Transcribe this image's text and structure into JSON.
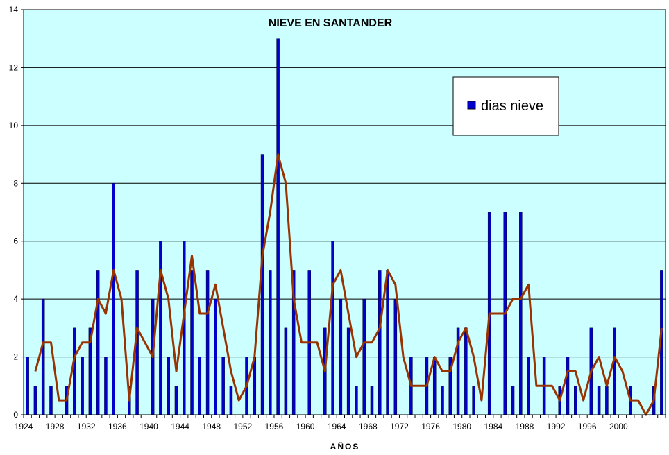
{
  "chart_data": {
    "type": "bar",
    "title": "NIEVE EN SANTANDER",
    "xlabel": "AÑOS",
    "ylabel": "",
    "ylim": [
      0,
      14
    ],
    "yticks": [
      0,
      2,
      4,
      6,
      8,
      10,
      12,
      14
    ],
    "xlim": [
      1924,
      2005
    ],
    "xtick_labels": [
      "1924",
      "1928",
      "1932",
      "1936",
      "1940",
      "1944",
      "1948",
      "1952",
      "1956",
      "1960",
      "1964",
      "1968",
      "1972",
      "1976",
      "1980",
      "1984",
      "1988",
      "1992",
      "1996",
      "2000"
    ],
    "grid": true,
    "legend_position": "upper-right",
    "colors": {
      "plot_background": "#ccffff",
      "bar": "#0000cc",
      "line": "#993300",
      "grid": "#000000"
    },
    "series": [
      {
        "name": "dias nieve",
        "kind": "bar",
        "x": [
          1924,
          1925,
          1926,
          1927,
          1928,
          1929,
          1930,
          1931,
          1932,
          1933,
          1934,
          1935,
          1936,
          1937,
          1938,
          1939,
          1940,
          1941,
          1942,
          1943,
          1944,
          1945,
          1946,
          1947,
          1948,
          1949,
          1950,
          1951,
          1952,
          1953,
          1954,
          1955,
          1956,
          1957,
          1958,
          1959,
          1960,
          1961,
          1962,
          1963,
          1964,
          1965,
          1966,
          1967,
          1968,
          1969,
          1970,
          1971,
          1972,
          1973,
          1974,
          1975,
          1976,
          1977,
          1978,
          1979,
          1980,
          1981,
          1982,
          1983,
          1984,
          1985,
          1986,
          1987,
          1988,
          1989,
          1990,
          1991,
          1992,
          1993,
          1994,
          1995,
          1996,
          1997,
          1998,
          1999,
          2000,
          2001,
          2002,
          2003,
          2004,
          2005
        ],
        "values": [
          2,
          1,
          4,
          1,
          0,
          1,
          3,
          2,
          3,
          5,
          2,
          8,
          0,
          1,
          5,
          0,
          4,
          6,
          2,
          1,
          6,
          5,
          2,
          5,
          4,
          2,
          1,
          0,
          2,
          2,
          9,
          5,
          13,
          3,
          5,
          0,
          5,
          0,
          3,
          6,
          4,
          3,
          1,
          4,
          1,
          5,
          5,
          4,
          0,
          2,
          0,
          2,
          2,
          1,
          2,
          3,
          3,
          1,
          0,
          7,
          0,
          7,
          1,
          7,
          2,
          0,
          2,
          0,
          1,
          2,
          1,
          0,
          3,
          1,
          1,
          3,
          0,
          1,
          0,
          0,
          1,
          5
        ]
      },
      {
        "name": "",
        "kind": "line",
        "x": [
          1925,
          1926,
          1927,
          1928,
          1929,
          1930,
          1931,
          1932,
          1933,
          1934,
          1935,
          1936,
          1937,
          1938,
          1939,
          1940,
          1941,
          1942,
          1943,
          1944,
          1945,
          1946,
          1947,
          1948,
          1949,
          1950,
          1951,
          1952,
          1953,
          1954,
          1955,
          1956,
          1957,
          1958,
          1959,
          1960,
          1961,
          1962,
          1963,
          1964,
          1965,
          1966,
          1967,
          1968,
          1969,
          1970,
          1971,
          1972,
          1973,
          1974,
          1975,
          1976,
          1977,
          1978,
          1979,
          1980,
          1981,
          1982,
          1983,
          1984,
          1985,
          1986,
          1987,
          1988,
          1989,
          1990,
          1991,
          1992,
          1993,
          1994,
          1995,
          1996,
          1997,
          1998,
          1999,
          2000,
          2001,
          2002,
          2003,
          2004,
          2005
        ],
        "values": [
          1.5,
          2.5,
          2.5,
          0.5,
          0.5,
          2,
          2.5,
          2.5,
          4,
          3.5,
          5,
          4,
          0.5,
          3,
          2.5,
          2,
          5,
          4,
          1.5,
          3.5,
          5.5,
          3.5,
          3.5,
          4.5,
          3,
          1.5,
          0.5,
          1,
          2,
          5.5,
          7,
          9,
          8,
          4,
          2.5,
          2.5,
          2.5,
          1.5,
          4.5,
          5,
          3.5,
          2,
          2.5,
          2.5,
          3,
          5,
          4.5,
          2,
          1,
          1,
          1,
          2,
          1.5,
          1.5,
          2.5,
          3,
          2,
          0.5,
          3.5,
          3.5,
          3.5,
          4,
          4,
          4.5,
          1,
          1,
          1,
          0.5,
          1.5,
          1.5,
          0.5,
          1.5,
          2,
          1,
          2,
          1.5,
          0.5,
          0.5,
          0,
          0.5,
          3
        ]
      }
    ]
  }
}
